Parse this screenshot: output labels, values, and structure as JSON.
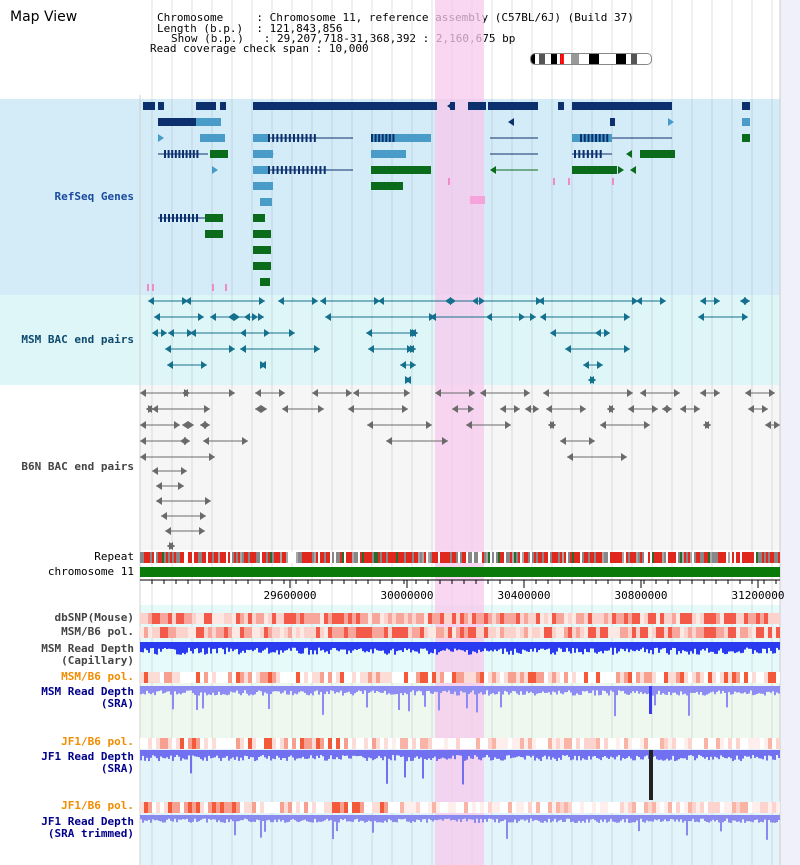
{
  "page": {
    "title": "Map View",
    "info": {
      "chromosome_key": "Chromosome",
      "chromosome_value": "Chromosome 11, reference assembly (C57BL/6J) (Build 37)",
      "length_key": "Length (b.p.)",
      "length_value": "121,843,856",
      "show_key": "Show (b.p.)",
      "show_value": "29,207,718-31,368,392 : 2,160,675 bp",
      "coverage_key": "Read coverage check span",
      "coverage_value": "10,000"
    }
  },
  "tracks": {
    "refseq": {
      "label": "RefSeq Genes",
      "color": "#1a4a9e"
    },
    "msm_bac": {
      "label": "MSM BAC end pairs",
      "color": "#0e4a6e"
    },
    "b6n_bac": {
      "label": "B6N BAC end pairs",
      "color": "#444444"
    },
    "repeat": {
      "label": "Repeat",
      "color": "#000000"
    },
    "chromosome": {
      "label": "chromosome 11",
      "color": "#000000"
    },
    "dbsnp": {
      "label": "dbSNP(Mouse)",
      "color": "#444444"
    },
    "msm_b6_pol_1": {
      "label": "MSM/B6 pol.",
      "color": "#444444"
    },
    "msm_read_depth_cap": {
      "label_line1": "MSM Read Depth",
      "label_line2": "(Capillary)",
      "color": "#444444"
    },
    "msm_b6_pol_2": {
      "label": "MSM/B6 pol.",
      "color": "#f28c00"
    },
    "msm_read_depth_sra": {
      "label_line1": "MSM Read Depth",
      "label_line2": "(SRA)",
      "color": "#00008b"
    },
    "jf1_b6_pol_1": {
      "label": "JF1/B6 pol.",
      "color": "#f28c00"
    },
    "jf1_read_depth_sra": {
      "label_line1": "JF1 Read Depth",
      "label_line2": "(SRA)",
      "color": "#00008b"
    },
    "jf1_b6_pol_2": {
      "label": "JF1/B6 pol.",
      "color": "#f28c00"
    },
    "jf1_read_depth_trim": {
      "label_line1": "JF1 Read Depth",
      "label_line2": "(SRA trimmed)",
      "color": "#00008b"
    }
  },
  "axis": {
    "ticks": [
      "29600000",
      "30000000",
      "30400000",
      "30800000",
      "31200000"
    ]
  },
  "colors": {
    "highlight": "#f7c8ec",
    "refseq_bg": "#d4ecf8",
    "msm_bg": "#dff6f8",
    "gene_dark": "#0c2f6e",
    "gene_light": "#4a9cc8",
    "gene_green": "#0a6b1a",
    "chromosome_bar": "#0a7a0a"
  }
}
